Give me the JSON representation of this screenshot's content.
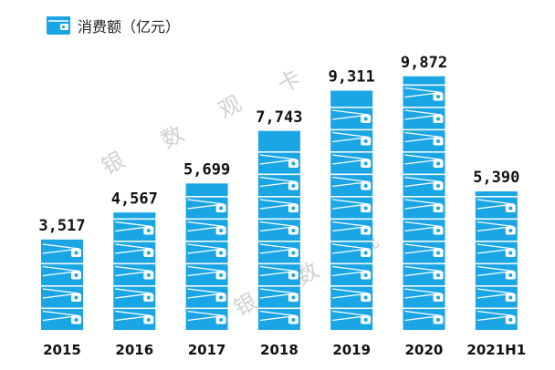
{
  "legend": {
    "label": "消费额（亿元）",
    "icon": "wallet-icon"
  },
  "watermark": {
    "text": [
      "银",
      "数",
      "观",
      "卡"
    ],
    "color": "#d0d0d0"
  },
  "colors": {
    "bar": "#1aa6e4",
    "bar_top": "#1aa6e4",
    "bar_detail": "#ffffff",
    "label": "#111111"
  },
  "chart_data": {
    "type": "bar",
    "categories": [
      "2015",
      "2016",
      "2017",
      "2018",
      "2019",
      "2020",
      "2021H1"
    ],
    "values": [
      3517,
      4567,
      5699,
      7743,
      9311,
      9872,
      5390
    ],
    "value_labels": [
      "3,517",
      "4,567",
      "5,699",
      "7,743",
      "9,311",
      "9,872",
      "5,390"
    ],
    "ylim": [
      0,
      11000
    ],
    "grid": false,
    "legend_position": "top-left"
  }
}
